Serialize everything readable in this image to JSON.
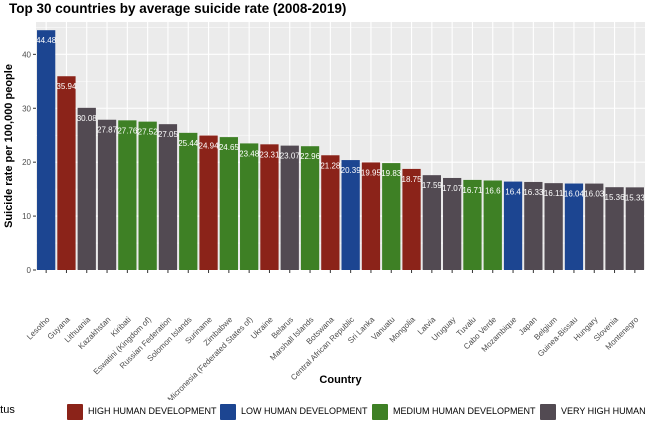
{
  "chart_data": {
    "type": "bar",
    "title": "Top 30 countries by average suicide rate (2008-2019)",
    "xlabel": "Country",
    "ylabel": "Suicide rate per 100,000 people",
    "ylim": [
      0,
      46
    ],
    "yticks": [
      0,
      10,
      20,
      30,
      40
    ],
    "grid": true,
    "legend_position": "bottom",
    "legend_title": "Development status",
    "legend_title_visible": "ment status",
    "legend": [
      {
        "key": "high",
        "label": "HIGH HUMAN DEVELOPMENT",
        "color": "#8b2319"
      },
      {
        "key": "low",
        "label": "LOW HUMAN DEVELOPMENT",
        "color": "#1c4591"
      },
      {
        "key": "medium",
        "label": "MEDIUM HUMAN DEVELOPMENT",
        "color": "#3e8025"
      },
      {
        "key": "veryhigh",
        "label": "VERY HIGH HUMAN DEVELOPMENT",
        "color": "#524a52"
      }
    ],
    "categories": [
      "Lesotho",
      "Guyana",
      "Lithuania",
      "Kazakhstan",
      "Kiribati",
      "Eswatini (Kingdom of)",
      "Russian Federation",
      "Solomon Islands",
      "Suriname",
      "Zimbabwe",
      "Micronesia (Federated States of)",
      "Ukraine",
      "Belarus",
      "Marshall Islands",
      "Botswana",
      "Central African Republic",
      "Sri Lanka",
      "Vanuatu",
      "Mongolia",
      "Latvia",
      "Uruguay",
      "Tuvalu",
      "Cabo Verde",
      "Mozambique",
      "Japan",
      "Belgium",
      "Guinea-Bissau",
      "Hungary",
      "Slovenia",
      "Montenegro"
    ],
    "values": [
      44.48,
      35.94,
      30.08,
      27.87,
      27.76,
      27.52,
      27.05,
      25.44,
      24.94,
      24.65,
      23.48,
      23.31,
      23.07,
      22.96,
      21.28,
      20.39,
      19.95,
      19.83,
      18.75,
      17.59,
      17.07,
      16.71,
      16.6,
      16.4,
      16.33,
      16.11,
      16.04,
      16.03,
      15.36,
      15.33
    ],
    "labels": [
      "44.48",
      "35.94",
      "30.08",
      "27.87",
      "27.76",
      "27.52",
      "27.05",
      "25.44",
      "24.94",
      "24.65",
      "23.48",
      "23.31",
      "23.07",
      "22.96",
      "21.28",
      "20.39",
      "19.95",
      "19.83",
      "18.75",
      "17.59",
      "17.07",
      "16.71",
      "16.6",
      "16.4",
      "16.33",
      "16.11",
      "16.04",
      "16.03",
      "15.36",
      "15.33"
    ],
    "groups": [
      "low",
      "high",
      "veryhigh",
      "veryhigh",
      "medium",
      "medium",
      "veryhigh",
      "medium",
      "high",
      "medium",
      "medium",
      "high",
      "veryhigh",
      "medium",
      "high",
      "low",
      "high",
      "medium",
      "high",
      "veryhigh",
      "veryhigh",
      "medium",
      "medium",
      "low",
      "veryhigh",
      "veryhigh",
      "low",
      "veryhigh",
      "veryhigh",
      "veryhigh"
    ],
    "colors": {
      "panel": "#ebebeb",
      "grid": "#ffffff",
      "bar_label": "#ffffff",
      "axis_text": "#4d4d4d"
    }
  }
}
